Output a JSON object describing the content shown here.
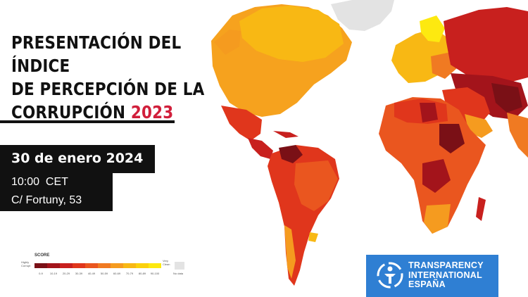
{
  "title": {
    "line1": "PRESENTACIÓN DEL ÍNDICE",
    "line2": "DE PERCEPCIÓN DE LA",
    "line3_prefix": "CORRUPCIÓN",
    "year": "2023"
  },
  "event": {
    "date": "30 de enero 2024",
    "time": "10:00  CET",
    "address": "C/ Fortuny, 53"
  },
  "legend": {
    "title": "SCORE",
    "low_label_line1": "Highly",
    "low_label_line2": "Corrupt",
    "high_label_line1": "Very",
    "high_label_line2": "Clean",
    "no_data_label": "No data",
    "ticks": [
      "0-9",
      "10-19",
      "20-29",
      "30-39",
      "40-49",
      "50-59",
      "60-69",
      "70-79",
      "80-89",
      "90-100"
    ],
    "colors": [
      "#7a1016",
      "#a3141b",
      "#c8201e",
      "#e0361c",
      "#ea561f",
      "#f07a22",
      "#f59b1f",
      "#f8b814",
      "#fbd10c",
      "#fde910"
    ],
    "no_data_color": "#e3e3e3"
  },
  "logo": {
    "line1": "TRANSPARENCY",
    "line2": "INTERNATIONAL",
    "line3": "ESPAÑA",
    "background": "#2f7fd3"
  },
  "colors": {
    "accent": "#d11f3b",
    "text": "#111111",
    "box": "#111111"
  }
}
